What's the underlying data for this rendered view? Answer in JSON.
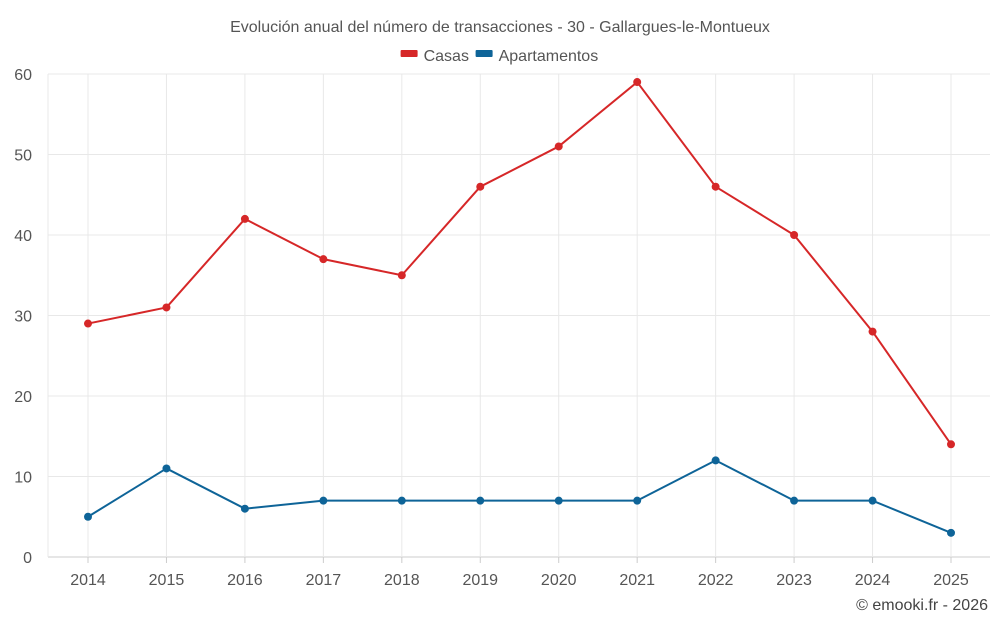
{
  "chart_data": {
    "type": "line",
    "title": "Evolución anual del número de transacciones - 30 - Gallargues-le-Montueux",
    "xlabel": "",
    "ylabel": "",
    "categories": [
      "2014",
      "2015",
      "2016",
      "2017",
      "2018",
      "2019",
      "2020",
      "2021",
      "2022",
      "2023",
      "2024",
      "2025"
    ],
    "ylim": [
      0,
      60
    ],
    "yticks": [
      0,
      10,
      20,
      30,
      40,
      50,
      60
    ],
    "grid": true,
    "legend_position": "top-center",
    "series": [
      {
        "name": "Casas",
        "color": "#d62728",
        "values": [
          29,
          31,
          42,
          37,
          35,
          46,
          51,
          59,
          46,
          40,
          28,
          14
        ]
      },
      {
        "name": "Apartamentos",
        "color": "#0e6498",
        "values": [
          5,
          11,
          6,
          7,
          7,
          7,
          7,
          7,
          12,
          7,
          7,
          3
        ]
      }
    ]
  },
  "credit": "© emooki.fr - 2026"
}
